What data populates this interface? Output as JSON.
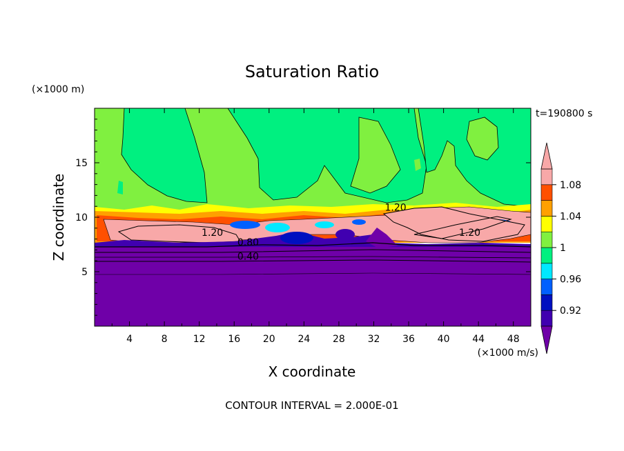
{
  "chart_data": {
    "type": "contour",
    "title": "Saturation Ratio",
    "xlabel": "X coordinate",
    "ylabel": "Z coordinate",
    "x_unit": "(×1000 m/s)",
    "y_unit": "(×1000 m)",
    "time_label": "t=190800 s",
    "footer": "CONTOUR INTERVAL = 2.000E-01",
    "xlim": [
      0,
      50
    ],
    "ylim": [
      0,
      20
    ],
    "x_ticks": [
      4,
      8,
      12,
      16,
      20,
      24,
      28,
      32,
      36,
      40,
      44,
      48
    ],
    "y_ticks": [
      5,
      10,
      15
    ],
    "colorbar": {
      "levels": [
        {
          "value": 0.9,
          "color": "#6f00a8"
        },
        {
          "value": 0.92,
          "color": "#4000b0"
        },
        {
          "value": 0.94,
          "color": "#0010c0"
        },
        {
          "value": 0.96,
          "color": "#0060ff"
        },
        {
          "value": 0.98,
          "color": "#00e8ff"
        },
        {
          "value": 1.0,
          "color": "#00f080"
        },
        {
          "value": 1.02,
          "color": "#80f040"
        },
        {
          "value": 1.04,
          "color": "#ffff00"
        },
        {
          "value": 1.06,
          "color": "#ffa000"
        },
        {
          "value": 1.08,
          "color": "#ff5000"
        },
        {
          "value": 1.1,
          "color": "#f8a8a8"
        }
      ],
      "tick_labels": [
        "1.08",
        "1.04",
        "1",
        "0.96",
        "0.92"
      ],
      "tick_values": [
        1.08,
        1.04,
        1.0,
        0.96,
        0.92
      ]
    },
    "contour_labels": [
      {
        "text": "1.20",
        "x": 34.5,
        "y": 10.6
      },
      {
        "text": "1.20",
        "x": 13.5,
        "y": 8.3
      },
      {
        "text": "0.80",
        "x": 17.6,
        "y": 7.4
      },
      {
        "text": "0.40",
        "x": 17.6,
        "y": 6.1
      },
      {
        "text": "1.20",
        "x": 43.0,
        "y": 8.3
      }
    ]
  }
}
